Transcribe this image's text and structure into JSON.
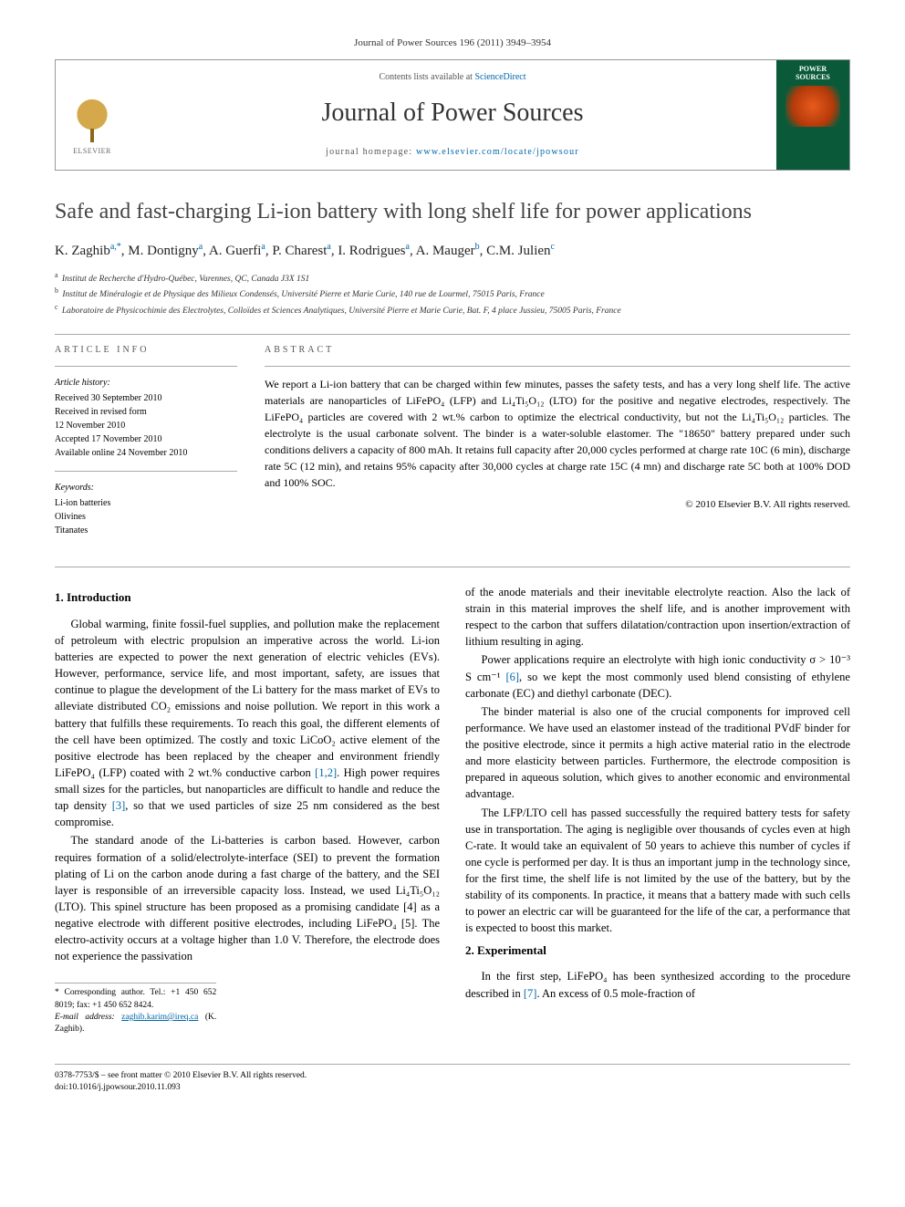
{
  "header": {
    "citation": "Journal of Power Sources 196 (2011) 3949–3954",
    "contents_prefix": "Contents lists available at ",
    "contents_link": "ScienceDirect",
    "journal_name": "Journal of Power Sources",
    "homepage_prefix": "journal homepage: ",
    "homepage_url": "www.elsevier.com/locate/jpowsour",
    "publisher_logo_text": "ELSEVIER",
    "cover_label": "POWER SOURCES"
  },
  "article": {
    "title": "Safe and fast-charging Li-ion battery with long shelf life for power applications",
    "authors_html": "K. Zaghib<sup>a,*</sup>, M. Dontigny<sup>a</sup>, A. Guerfi<sup>a</sup>, P. Charest<sup>a</sup>, I. Rodrigues<sup>a</sup>, A. Mauger<sup>b</sup>, C.M. Julien<sup>c</sup>",
    "affiliations": {
      "a": "Institut de Recherche d'Hydro-Québec, Varennes, QC, Canada J3X 1S1",
      "b": "Institut de Minéralogie et de Physique des Milieux Condensés, Université Pierre et Marie Curie, 140 rue de Lourmel, 75015 Paris, France",
      "c": "Laboratoire de Physicochimie des Electrolytes, Colloïdes et Sciences Analytiques, Université Pierre et Marie Curie, Bat. F, 4 place Jussieu, 75005 Paris, France"
    }
  },
  "info": {
    "heading_left": "ARTICLE INFO",
    "heading_right": "ABSTRACT",
    "history_label": "Article history:",
    "history": [
      "Received 30 September 2010",
      "Received in revised form",
      "12 November 2010",
      "Accepted 17 November 2010",
      "Available online 24 November 2010"
    ],
    "keywords_label": "Keywords:",
    "keywords": [
      "Li-ion batteries",
      "Olivines",
      "Titanates"
    ],
    "abstract": "We report a Li-ion battery that can be charged within few minutes, passes the safety tests, and has a very long shelf life. The active materials are nanoparticles of LiFePO₄ (LFP) and Li₄Ti₅O₁₂ (LTO) for the positive and negative electrodes, respectively. The LiFePO₄ particles are covered with 2 wt.% carbon to optimize the electrical conductivity, but not the Li₄Ti₅O₁₂ particles. The electrolyte is the usual carbonate solvent. The binder is a water-soluble elastomer. The \"18650\" battery prepared under such conditions delivers a capacity of 800 mAh. It retains full capacity after 20,000 cycles performed at charge rate 10C (6 min), discharge rate 5C (12 min), and retains 95% capacity after 30,000 cycles at charge rate 15C (4 mn) and discharge rate 5C both at 100% DOD and 100% SOC.",
    "copyright": "© 2010 Elsevier B.V. All rights reserved."
  },
  "sections": {
    "s1_title": "1.  Introduction",
    "s1_p1": "Global warming, finite fossil-fuel supplies, and pollution make the replacement of petroleum with electric propulsion an imperative across the world. Li-ion batteries are expected to power the next generation of electric vehicles (EVs). However, performance, service life, and most important, safety, are issues that continue to plague the development of the Li battery for the mass market of EVs to alleviate distributed CO₂ emissions and noise pollution. We report in this work a battery that fulfills these requirements. To reach this goal, the different elements of the cell have been optimized. The costly and toxic LiCoO₂ active element of the positive electrode has been replaced by the cheaper and environment friendly LiFePO₄ (LFP) coated with 2 wt.% conductive carbon [1,2]. High power requires small sizes for the particles, but nanoparticles are difficult to handle and reduce the tap density [3], so that we used particles of size 25 nm considered as the best compromise.",
    "s1_p2": "The standard anode of the Li-batteries is carbon based. However, carbon requires formation of a solid/electrolyte-interface (SEI) to prevent the formation plating of Li on the carbon anode during a fast charge of the battery, and the SEI layer is responsible of an irreversible capacity loss. Instead, we used Li₄Ti₅O₁₂ (LTO). This spinel structure has been proposed as a promising candidate [4] as a negative electrode with different positive electrodes, including LiFePO₄ [5]. The electro-activity occurs at a voltage higher than 1.0 V. Therefore, the electrode does not experience the passivation",
    "s1_p2b": "of the anode materials and their inevitable electrolyte reaction. Also the lack of strain in this material improves the shelf life, and is another improvement with respect to the carbon that suffers dilatation/contraction upon insertion/extraction of lithium resulting in aging.",
    "s1_p3": "Power applications require an electrolyte with high ionic conductivity σ > 10⁻³ S cm⁻¹ [6], so we kept the most commonly used blend consisting of ethylene carbonate (EC) and diethyl carbonate (DEC).",
    "s1_p4": "The binder material is also one of the crucial components for improved cell performance. We have used an elastomer instead of the traditional PVdF binder for the positive electrode, since it permits a high active material ratio in the electrode and more elasticity between particles. Furthermore, the electrode composition is prepared in aqueous solution, which gives to another economic and environmental advantage.",
    "s1_p5": "The LFP/LTO cell has passed successfully the required battery tests for safety use in transportation. The aging is negligible over thousands of cycles even at high C-rate. It would take an equivalent of 50 years to achieve this number of cycles if one cycle is performed per day. It is thus an important jump in the technology since, for the first time, the shelf life is not limited by the use of the battery, but by the stability of its components. In practice, it means that a battery made with such cells to power an electric car will be guaranteed for the life of the car, a performance that is expected to boost this market.",
    "s2_title": "2.  Experimental",
    "s2_p1": "In the first step, LiFePO₄ has been synthesized according to the procedure described in [7]. An excess of 0.5 mole-fraction of"
  },
  "footer": {
    "corr_line1": "* Corresponding author. Tel.: +1 450 652 8019; fax: +1 450 652 8424.",
    "corr_line2_label": "E-mail address: ",
    "corr_email": "zaghib.karim@ireq.ca",
    "corr_suffix": " (K. Zaghib).",
    "issn_line": "0378-7753/$ – see front matter © 2010 Elsevier B.V. All rights reserved.",
    "doi_line": "doi:10.1016/j.jpowsour.2010.11.093"
  },
  "colors": {
    "link": "#0066aa",
    "cover_bg": "#0a5a3a",
    "cover_accent": "#e85a1c",
    "body_text": "#000000",
    "rule": "#aaaaaa"
  }
}
